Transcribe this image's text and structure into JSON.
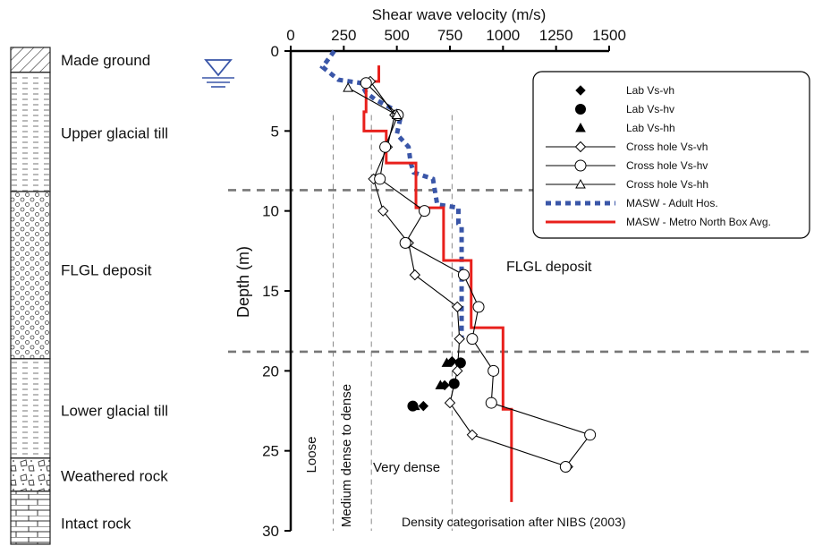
{
  "strata": [
    {
      "label": "Made ground",
      "pattern": "hatch",
      "top": 0,
      "bottom": 1.5
    },
    {
      "label": "Upper glacial till",
      "pattern": "dashes",
      "top": 1.5,
      "bottom": 8.7
    },
    {
      "label": "FLGL deposit",
      "pattern": "circles",
      "top": 8.7,
      "bottom": 18.8
    },
    {
      "label": "Lower glacial till",
      "pattern": "dashes",
      "top": 18.8,
      "bottom": 24.8
    },
    {
      "label": "Weathered rock",
      "pattern": "rubble",
      "top": 24.8,
      "bottom": 26.8
    },
    {
      "label": "Intact rock",
      "pattern": "brick",
      "top": 26.8,
      "bottom": 30
    }
  ],
  "chart_data": {
    "type": "line",
    "title": "",
    "xlabel": "Shear wave velocity (m/s)",
    "ylabel": "Depth (m)",
    "xlim": [
      0,
      1500
    ],
    "ylim": [
      30,
      0
    ],
    "x_ticks": [
      0,
      250,
      500,
      750,
      1000,
      1250,
      1500
    ],
    "y_ticks": [
      0,
      5,
      10,
      15,
      20,
      25,
      30
    ],
    "x_axis_position": "top",
    "y_axis_inverted": true,
    "grid": false,
    "legend_position": "top-right",
    "series": [
      {
        "name": "Lab Vs-vh",
        "style": "marker",
        "marker": "diamond-filled",
        "color": "#000000",
        "points": [
          [
            760,
            19.4
          ],
          [
            725,
            20.9
          ],
          [
            625,
            22.2
          ]
        ]
      },
      {
        "name": "Lab Vs-hv",
        "style": "marker",
        "marker": "circle-filled",
        "color": "#000000",
        "points": [
          [
            800,
            19.5
          ],
          [
            770,
            20.8
          ],
          [
            575,
            22.2
          ]
        ]
      },
      {
        "name": "Lab Vs-hh",
        "style": "marker",
        "marker": "triangle-filled",
        "color": "#000000",
        "points": [
          [
            735,
            19.5
          ],
          [
            705,
            20.9
          ],
          [
            585,
            22.2
          ]
        ]
      },
      {
        "name": "Cross hole Vs-vh",
        "style": "line+marker",
        "marker": "diamond-open",
        "color": "#000000",
        "points": [
          [
            375,
            1.9
          ],
          [
            490,
            4
          ],
          [
            455,
            6
          ],
          [
            390,
            8
          ],
          [
            435,
            10
          ],
          [
            555,
            12
          ],
          [
            585,
            14
          ],
          [
            785,
            16
          ],
          [
            795,
            18
          ],
          [
            785,
            20
          ],
          [
            750,
            22
          ],
          [
            855,
            24
          ],
          [
            1305,
            26
          ]
        ]
      },
      {
        "name": "Cross hole Vs-hv",
        "style": "line+marker",
        "marker": "circle-open",
        "color": "#000000",
        "points": [
          [
            355,
            2
          ],
          [
            505,
            4
          ],
          [
            445,
            6
          ],
          [
            420,
            8
          ],
          [
            630,
            10
          ],
          [
            540,
            12
          ],
          [
            815,
            14
          ],
          [
            885,
            16
          ],
          [
            855,
            18
          ],
          [
            955,
            20
          ],
          [
            945,
            22
          ],
          [
            1410,
            24
          ],
          [
            1295,
            26
          ]
        ]
      },
      {
        "name": "Cross hole Vs-hh",
        "style": "line+marker",
        "marker": "triangle-open",
        "color": "#000000",
        "points": [
          [
            270,
            2.3
          ],
          [
            500,
            4
          ]
        ]
      },
      {
        "name": "MASW - Adult Hos.",
        "style": "dashed-step",
        "color": "#3a56a8",
        "points": [
          [
            205,
            0
          ],
          [
            150,
            1
          ],
          [
            225,
            1.8
          ],
          [
            330,
            2
          ],
          [
            355,
            2.6
          ],
          [
            395,
            3
          ],
          [
            505,
            3.8
          ],
          [
            515,
            4.3
          ],
          [
            500,
            5.2
          ],
          [
            555,
            6
          ],
          [
            565,
            7
          ],
          [
            580,
            7.6
          ],
          [
            670,
            8
          ],
          [
            690,
            9.6
          ],
          [
            790,
            9.8
          ],
          [
            790,
            10.8
          ],
          [
            805,
            11
          ],
          [
            805,
            18
          ]
        ]
      },
      {
        "name": "MASW - Metro North Box Avg.",
        "style": "step",
        "color": "#e8201c",
        "points": [
          [
            415,
            0.9
          ],
          [
            415,
            1.9
          ],
          [
            355,
            1.9
          ],
          [
            355,
            3.8
          ],
          [
            345,
            3.8
          ],
          [
            345,
            5
          ],
          [
            450,
            5
          ],
          [
            450,
            7
          ],
          [
            590,
            7
          ],
          [
            590,
            9.8
          ],
          [
            720,
            9.8
          ],
          [
            720,
            13.1
          ],
          [
            850,
            13.1
          ],
          [
            850,
            17.3
          ],
          [
            1000,
            17.3
          ],
          [
            1000,
            22.4
          ],
          [
            1040,
            22.4
          ],
          [
            1040,
            28.2
          ]
        ]
      }
    ],
    "reference_lines": [
      {
        "type": "vertical",
        "x": 200,
        "style": "dashed",
        "color": "#888888"
      },
      {
        "type": "vertical",
        "x": 380,
        "style": "dashed",
        "color": "#888888"
      },
      {
        "type": "vertical",
        "x": 760,
        "style": "dashed",
        "color": "#888888"
      },
      {
        "type": "horizontal",
        "y": 8.7,
        "style": "dashed",
        "color": "#777777"
      },
      {
        "type": "horizontal",
        "y": 18.8,
        "style": "dashed",
        "color": "#777777"
      }
    ],
    "annotations": {
      "loose": "Loose",
      "medium_dense": "Medium dense to dense",
      "very_dense": "Very dense",
      "flgl": "FLGL deposit",
      "density_source": "Density categorisation after NIBS (2003)"
    }
  }
}
